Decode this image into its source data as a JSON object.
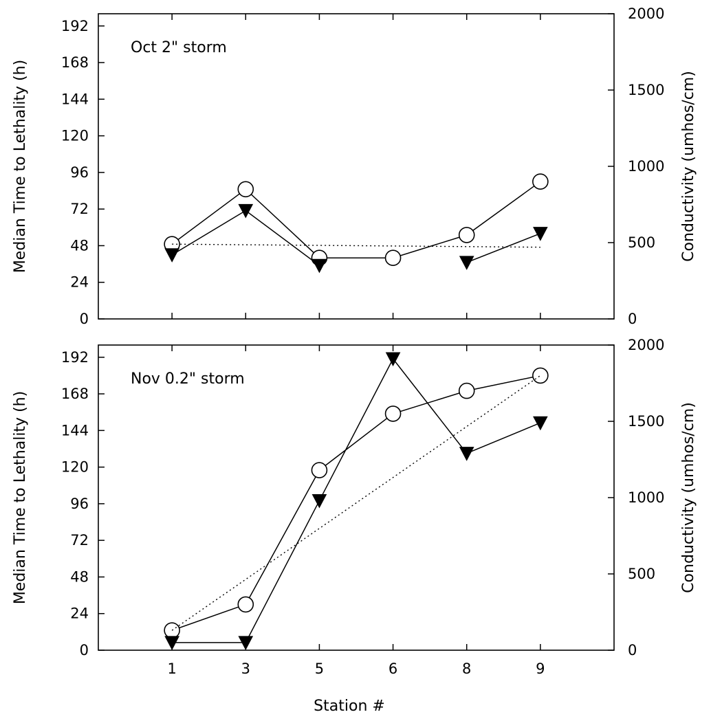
{
  "chart_data": [
    {
      "type": "line",
      "title": "Oct 2\" storm",
      "categories": [
        "1",
        "3",
        "5",
        "6",
        "8",
        "9"
      ],
      "ylabel": "Median Time to Lethality (h)",
      "ylabel_right": "Conductivity (umhos/cm)",
      "ylim": [
        0,
        200
      ],
      "ylim_right": [
        0,
        2000
      ],
      "yticks": [
        "0",
        "24",
        "48",
        "72",
        "96",
        "120",
        "144",
        "168",
        "192"
      ],
      "yticks_right": [
        "0",
        "500",
        "1000",
        "1500",
        "2000"
      ],
      "series": [
        {
          "marker": "circle-open",
          "axis": "right",
          "values": [
            490,
            850,
            400,
            400,
            550,
            900
          ]
        },
        {
          "marker": "triangle-filled",
          "axis": "left",
          "values": [
            42,
            71,
            35,
            null,
            37,
            56
          ]
        },
        {
          "style": "dotted",
          "axis": "right",
          "values": [
            490,
            null,
            null,
            null,
            null,
            470
          ]
        }
      ]
    },
    {
      "type": "line",
      "title": "Nov 0.2\" storm",
      "categories": [
        "1",
        "3",
        "5",
        "6",
        "8",
        "9"
      ],
      "xlabel": "Station #",
      "ylabel": "Median Time to Lethality (h)",
      "ylabel_right": "Conductivity (umhos/cm)",
      "ylim": [
        0,
        200
      ],
      "ylim_right": [
        0,
        2000
      ],
      "yticks": [
        "0",
        "24",
        "48",
        "72",
        "96",
        "120",
        "144",
        "168",
        "192"
      ],
      "yticks_right": [
        "0",
        "500",
        "1000",
        "1500",
        "2000"
      ],
      "series": [
        {
          "marker": "circle-open",
          "axis": "right",
          "values": [
            130,
            300,
            1180,
            1550,
            1700,
            1800
          ]
        },
        {
          "marker": "triangle-filled",
          "axis": "left",
          "values": [
            5,
            5,
            98,
            191,
            129,
            149
          ]
        },
        {
          "style": "dotted",
          "axis": "right",
          "values": [
            130,
            null,
            null,
            null,
            null,
            1800
          ]
        }
      ]
    }
  ]
}
